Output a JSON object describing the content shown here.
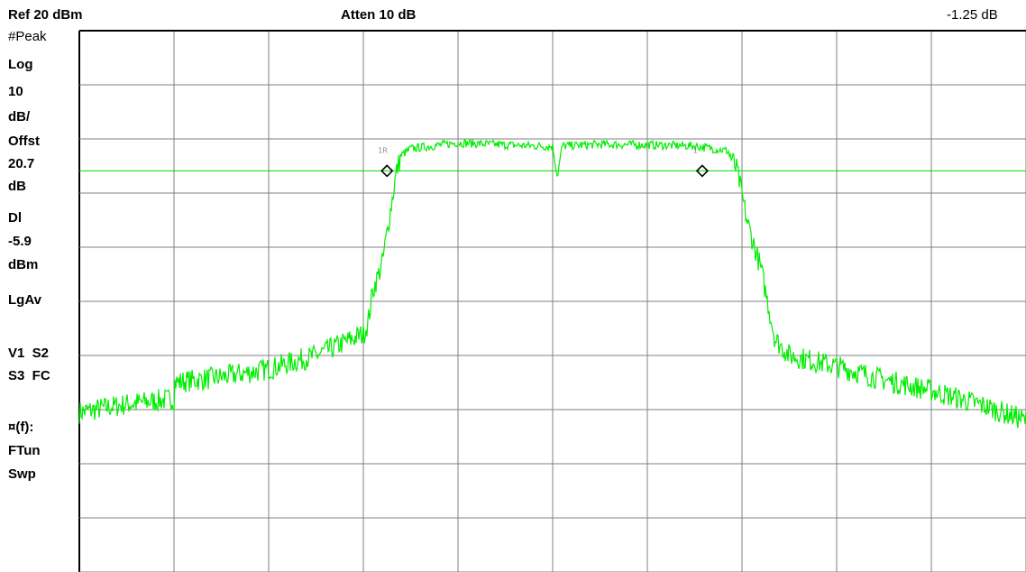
{
  "header": {
    "ref_level": "Ref 20 dBm",
    "attenuation": "Atten 10 dB",
    "marker_readout": "-1.25 dB"
  },
  "sidebar": {
    "detector": "#Peak",
    "scale_type": "Log",
    "scale_value": "10",
    "scale_unit": "dB/",
    "offset_label": "Offst",
    "offset_value": "20.7",
    "offset_unit": "dB",
    "display_line_label": "Dl",
    "display_line_value": "-5.9",
    "display_line_unit": "dBm",
    "averaging": "LgAv",
    "trace_flags_row1": "V1  S2",
    "trace_flags_row2": "S3  FC",
    "func_label": "¤(f):",
    "func_ftun": "FTun",
    "func_swp": "Swp"
  },
  "markers": {
    "marker_1_label": "1R",
    "marker_2_label": "1"
  },
  "colors": {
    "trace": "#00ee00",
    "grid": "#808080",
    "display_line": "#00dd00",
    "marker": "#000000"
  },
  "chart_data": {
    "type": "line",
    "title": "",
    "xlabel": "",
    "ylabel": "",
    "x_divisions": 10,
    "y_divisions": 10,
    "ylim": [
      -80,
      20
    ],
    "xlim": [
      0,
      10
    ],
    "y_unit": "dBm",
    "grid": true,
    "display_line": -5.9,
    "series": [
      {
        "values_x": [
          0.0,
          0.5,
          1.0,
          1.0,
          1.5,
          2.0,
          2.1,
          2.5,
          3.0,
          3.05,
          3.1,
          3.2,
          3.35,
          3.4,
          3.5,
          4.0,
          4.5,
          5.0,
          5.05,
          5.1,
          5.5,
          6.0,
          6.5,
          6.85,
          6.95,
          7.05,
          7.2,
          7.35,
          7.5,
          8.0,
          8.5,
          9.0,
          9.5,
          10.0
        ],
        "values_y": [
          -50.5,
          -49.0,
          -48.0,
          -45.0,
          -44.0,
          -42.5,
          -42.0,
          -40.0,
          -36.0,
          -34.0,
          -28.0,
          -23.0,
          -6.0,
          -3.0,
          -1.8,
          -0.7,
          -1.1,
          -1.4,
          -7.0,
          -1.3,
          -1.0,
          -1.1,
          -1.3,
          -2.2,
          -5.9,
          -15.0,
          -24.0,
          -37.0,
          -40.0,
          -42.0,
          -44.5,
          -46.5,
          -49.0,
          -52.0
        ]
      }
    ],
    "markers": [
      {
        "name": "1R",
        "x": 3.25,
        "y": -5.9
      },
      {
        "name": "1",
        "x": 6.58,
        "y": -5.9
      }
    ]
  }
}
